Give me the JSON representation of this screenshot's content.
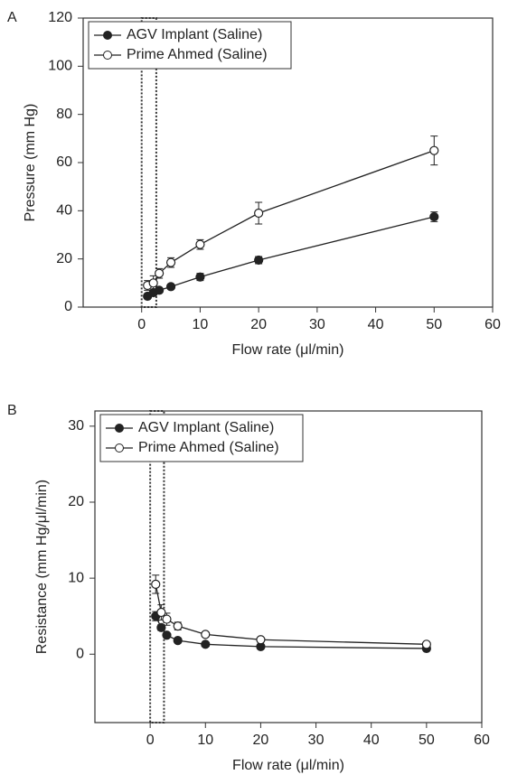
{
  "chart_data": [
    {
      "type": "line",
      "panel_label": "A",
      "x_label": "Flow rate (μl/min)",
      "y_label": "Pressure (mm Hg)",
      "x": [
        1,
        2,
        3,
        5,
        10,
        20,
        50
      ],
      "xlim": [
        -10,
        60
      ],
      "xticks": [
        0,
        10,
        20,
        30,
        40,
        50,
        60
      ],
      "ylim": [
        0,
        120
      ],
      "yticks": [
        0,
        20,
        40,
        60,
        80,
        100,
        120
      ],
      "highlight_x": [
        0,
        2.5
      ],
      "legend": "upper left",
      "series": [
        {
          "name": "AGV Implant (Saline)",
          "color": "#222",
          "marker_fill": "#222",
          "values": [
            4.5,
            6,
            7,
            8.5,
            12.5,
            19.5,
            37.5
          ],
          "errors": [
            1,
            1,
            1,
            1,
            1.5,
            1.5,
            2
          ]
        },
        {
          "name": "Prime Ahmed (Saline)",
          "color": "#222",
          "marker_fill": "#fff",
          "values": [
            9,
            10,
            14,
            18.5,
            26,
            39,
            65
          ],
          "errors": [
            2,
            3,
            2,
            2,
            2,
            4.5,
            6
          ]
        }
      ]
    },
    {
      "type": "line",
      "panel_label": "B",
      "x_label": "Flow rate (μl/min)",
      "y_label": "Resistance (mm Hg/μl/min)",
      "x": [
        1,
        2,
        3,
        5,
        10,
        20,
        50
      ],
      "xlim": [
        -10,
        60
      ],
      "xticks": [
        0,
        10,
        20,
        30,
        40,
        50,
        60
      ],
      "ylim": [
        -9,
        32
      ],
      "yticks": [
        0,
        10,
        20,
        30
      ],
      "highlight_x": [
        0,
        2.5
      ],
      "legend": "upper left",
      "series": [
        {
          "name": "AGV Implant (Saline)",
          "color": "#222",
          "marker_fill": "#222",
          "values": [
            5,
            3.5,
            2.5,
            1.8,
            1.3,
            1,
            0.75
          ],
          "errors": [
            0.6,
            0.4,
            0.3,
            0.2,
            0.1,
            0.1,
            0.05
          ]
        },
        {
          "name": "Prime Ahmed (Saline)",
          "color": "#222",
          "marker_fill": "#fff",
          "values": [
            9.2,
            5.5,
            4.6,
            3.7,
            2.6,
            1.9,
            1.3
          ],
          "errors": [
            1.2,
            1,
            0.8,
            0.5,
            0.3,
            0.2,
            0.1
          ]
        }
      ]
    }
  ]
}
